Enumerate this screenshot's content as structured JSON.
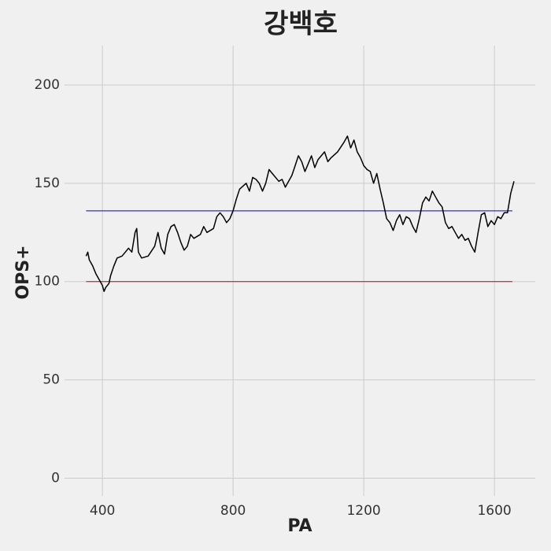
{
  "chart_data": {
    "type": "line",
    "title": "강백호",
    "xlabel": "PA",
    "ylabel": "OPS+",
    "x": [
      350,
      355,
      360,
      370,
      380,
      390,
      400,
      405,
      410,
      420,
      425,
      435,
      445,
      460,
      470,
      480,
      490,
      500,
      505,
      510,
      520,
      540,
      560,
      570,
      580,
      590,
      600,
      610,
      620,
      630,
      640,
      650,
      660,
      670,
      680,
      700,
      710,
      720,
      740,
      750,
      760,
      770,
      780,
      790,
      800,
      810,
      820,
      840,
      850,
      860,
      870,
      880,
      890,
      900,
      910,
      920,
      940,
      950,
      960,
      980,
      990,
      1000,
      1010,
      1020,
      1030,
      1040,
      1050,
      1060,
      1080,
      1090,
      1100,
      1120,
      1140,
      1150,
      1160,
      1170,
      1180,
      1190,
      1200,
      1210,
      1220,
      1230,
      1240,
      1250,
      1260,
      1270,
      1280,
      1290,
      1300,
      1310,
      1320,
      1330,
      1340,
      1350,
      1360,
      1370,
      1380,
      1390,
      1400,
      1410,
      1420,
      1430,
      1440,
      1450,
      1460,
      1470,
      1480,
      1490,
      1500,
      1510,
      1520,
      1530,
      1540,
      1550,
      1560,
      1570,
      1580,
      1590,
      1600,
      1610,
      1620,
      1630,
      1640,
      1650,
      1660
    ],
    "values": [
      113,
      115,
      111,
      108,
      104,
      101,
      98,
      95,
      97,
      99,
      103,
      108,
      112,
      113,
      115,
      117,
      115,
      125,
      127,
      115,
      112,
      113,
      118,
      125,
      117,
      114,
      124,
      128,
      129,
      125,
      120,
      116,
      118,
      124,
      122,
      124,
      128,
      125,
      127,
      133,
      135,
      133,
      130,
      132,
      136,
      142,
      147,
      150,
      146,
      153,
      152,
      150,
      146,
      150,
      157,
      155,
      151,
      152,
      148,
      154,
      159,
      164,
      161,
      156,
      160,
      164,
      158,
      162,
      166,
      161,
      163,
      166,
      171,
      174,
      168,
      172,
      166,
      163,
      159,
      157,
      156,
      150,
      155,
      147,
      140,
      132,
      130,
      126,
      131,
      134,
      129,
      133,
      132,
      128,
      125,
      132,
      140,
      143,
      141,
      146,
      143,
      140,
      138,
      130,
      127,
      128,
      125,
      122,
      124,
      121,
      122,
      118,
      115,
      125,
      134,
      135,
      128,
      131,
      129,
      133,
      132,
      135,
      135,
      145,
      151
    ],
    "color": "#000000",
    "hlines": [
      {
        "y": 136,
        "color": "#0000cc",
        "xmin": 350,
        "xmax": 1655
      },
      {
        "y": 100,
        "color": "#cc0000",
        "xmin": 350,
        "xmax": 1655
      }
    ],
    "xlim": [
      284,
      1725
    ],
    "ylim": [
      -9,
      220
    ],
    "xticks": [
      400,
      800,
      1200,
      1600
    ],
    "yticks": [
      0,
      50,
      100,
      150,
      200
    ],
    "grid": true
  }
}
